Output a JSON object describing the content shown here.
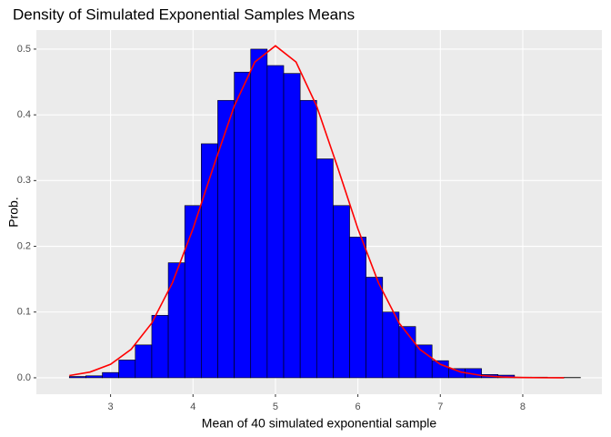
{
  "chart_data": {
    "type": "histogram",
    "title": "Density of Simulated Exponential Samples Means",
    "x_label": "Mean of 40 simulated exponential sample",
    "y_label": "Prob.",
    "bins": [
      2.5,
      2.7,
      2.9,
      3.1,
      3.3,
      3.5,
      3.7,
      3.9,
      4.1,
      4.3,
      4.5,
      4.7,
      4.9,
      5.1,
      5.3,
      5.5,
      5.7,
      5.9,
      6.1,
      6.3,
      6.5,
      6.7,
      6.9,
      7.1,
      7.3,
      7.5,
      7.7,
      7.9,
      8.1,
      8.3,
      8.5,
      8.7
    ],
    "values": [
      0.002,
      0.003,
      0.008,
      0.027,
      0.05,
      0.095,
      0.175,
      0.262,
      0.356,
      0.422,
      0.465,
      0.5,
      0.475,
      0.463,
      0.422,
      0.333,
      0.262,
      0.214,
      0.153,
      0.1,
      0.078,
      0.05,
      0.026,
      0.014,
      0.014,
      0.005,
      0.004,
      0.001,
      0.001,
      0.0005,
      0.0005
    ],
    "color": "#0000ff",
    "edge_color": "#000000",
    "density": {
      "color": "#ff0000",
      "x": [
        2.5,
        2.75,
        3.0,
        3.25,
        3.5,
        3.75,
        4.0,
        4.25,
        4.5,
        4.75,
        5.0,
        5.25,
        5.5,
        5.75,
        6.0,
        6.25,
        6.5,
        6.75,
        7.0,
        7.25,
        7.5,
        7.75,
        8.0,
        8.25,
        8.5
      ],
      "values": [
        0.0034,
        0.0087,
        0.0205,
        0.0434,
        0.0832,
        0.1444,
        0.2267,
        0.3218,
        0.4133,
        0.4803,
        0.505,
        0.4803,
        0.4133,
        0.3218,
        0.2267,
        0.1444,
        0.0832,
        0.0434,
        0.0205,
        0.0087,
        0.0034,
        0.0012,
        0.0004,
        0.0001,
        0
      ]
    },
    "xlim": [
      2.1,
      8.96
    ],
    "ylim": [
      -0.025,
      0.529
    ],
    "xticks": [
      3,
      4,
      5,
      6,
      7,
      8
    ],
    "yticks": [
      {
        "value": 0,
        "label": "0.0"
      },
      0.1,
      0.2,
      0.3,
      0.4,
      0.5
    ],
    "grid": true
  }
}
